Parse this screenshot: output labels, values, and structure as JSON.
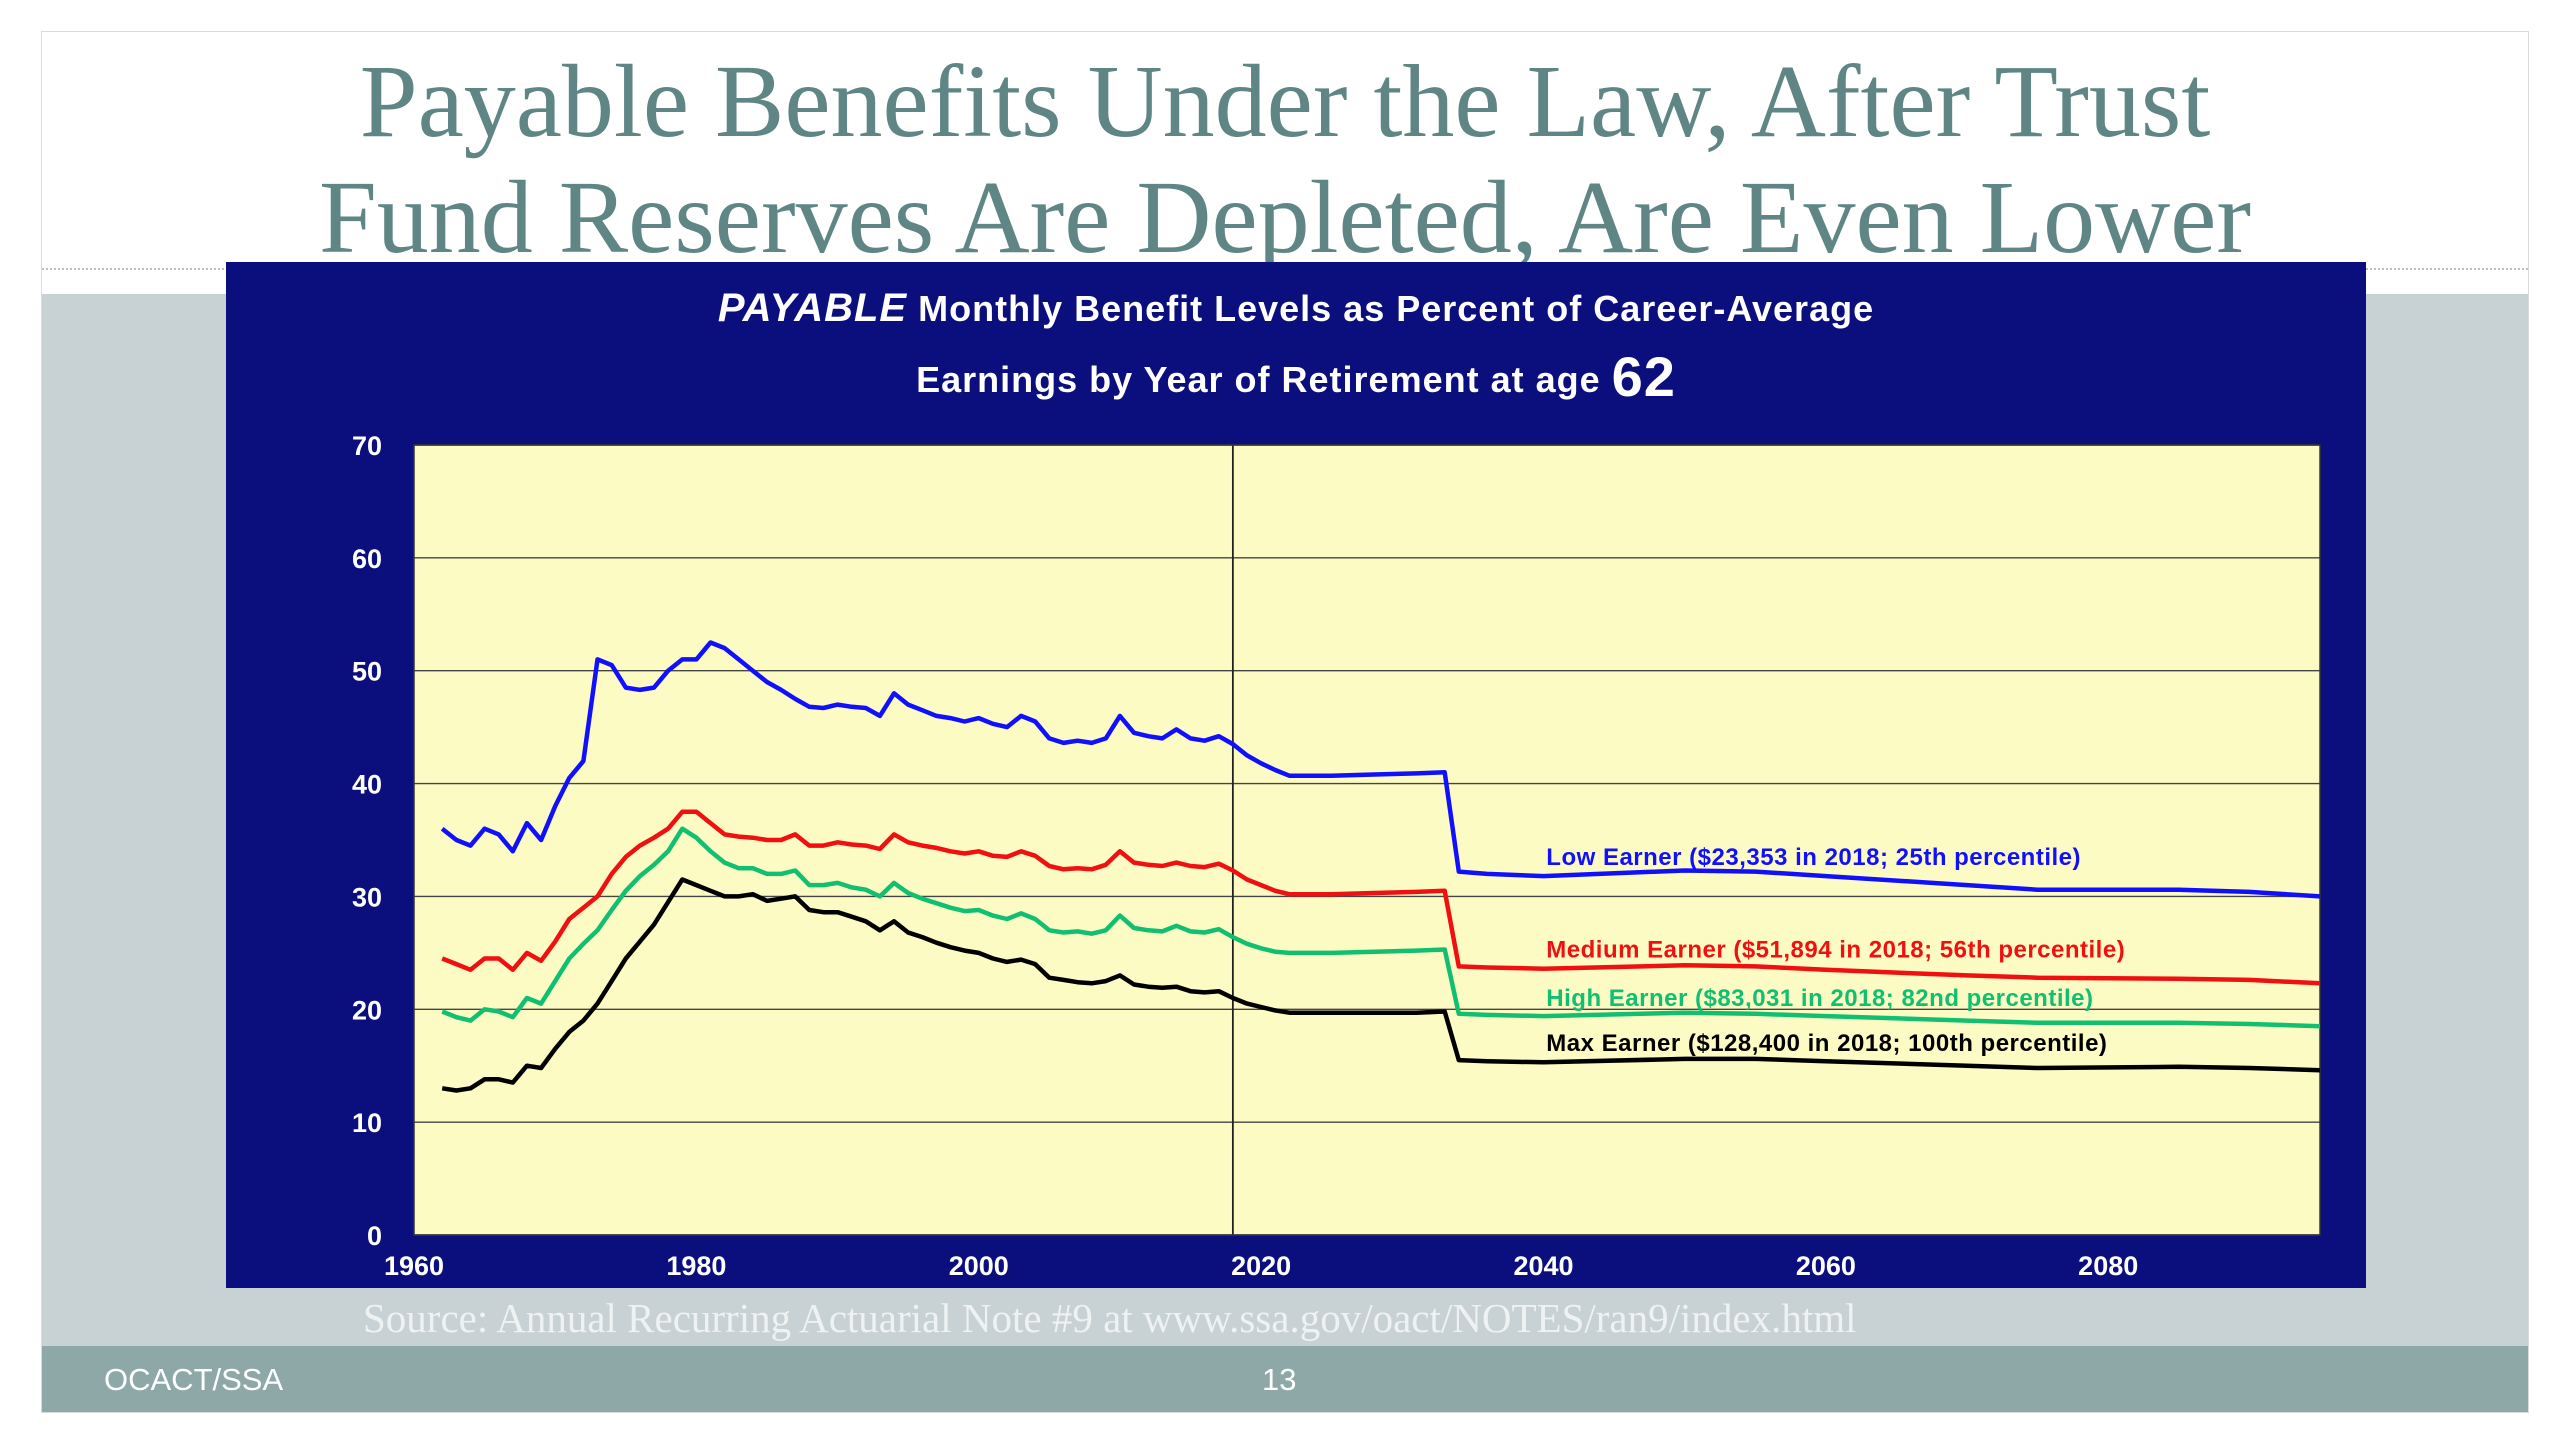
{
  "slide": {
    "title_line1": "Payable Benefits Under the Law, After Trust",
    "title_line2": "Fund Reserves Are Depleted, Are Even Lower",
    "source": "Source: Annual Recurring Actuarial Note #9 at www.ssa.gov/oact/NOTES/ran9/index.html",
    "footer_left": "OCACT/SSA",
    "page_number": "13",
    "colors": {
      "title": "#5f8585",
      "panel": "#0b0f7e",
      "plot_bg": "#fdfbc4",
      "footer": "#8ea8a8"
    }
  },
  "chart_data": {
    "type": "line",
    "title_emphasis": "PAYABLE",
    "title_rest": "Monthly Benefit Levels as Percent of Career-Average",
    "title_line2": "Earnings by Year of Retirement at age",
    "title_age": "62",
    "xlim": [
      1960,
      2095
    ],
    "ylim": [
      0,
      70
    ],
    "xticks": [
      1960,
      1980,
      2000,
      2020,
      2040,
      2060,
      2080
    ],
    "yticks": [
      0,
      10,
      20,
      30,
      40,
      50,
      60,
      70
    ],
    "grid": true,
    "reference_line_x": 2018,
    "series": [
      {
        "name": "Low Earner ($23,353 in 2018; 25th percentile)",
        "color": "#1010ff",
        "points": [
          [
            1962,
            36
          ],
          [
            1963,
            35
          ],
          [
            1964,
            34.5
          ],
          [
            1965,
            36
          ],
          [
            1966,
            35.5
          ],
          [
            1967,
            34
          ],
          [
            1968,
            36.5
          ],
          [
            1969,
            35
          ],
          [
            1970,
            38
          ],
          [
            1971,
            40.5
          ],
          [
            1972,
            42
          ],
          [
            1973,
            51
          ],
          [
            1974,
            50.5
          ],
          [
            1975,
            48.5
          ],
          [
            1976,
            48.3
          ],
          [
            1977,
            48.5
          ],
          [
            1978,
            50
          ],
          [
            1979,
            51
          ],
          [
            1980,
            51
          ],
          [
            1981,
            52.5
          ],
          [
            1982,
            52
          ],
          [
            1983,
            51
          ],
          [
            1984,
            50
          ],
          [
            1985,
            49
          ],
          [
            1986,
            48.3
          ],
          [
            1987,
            47.5
          ],
          [
            1988,
            46.8
          ],
          [
            1989,
            46.7
          ],
          [
            1990,
            47
          ],
          [
            1991,
            46.8
          ],
          [
            1992,
            46.7
          ],
          [
            1993,
            46
          ],
          [
            1994,
            48
          ],
          [
            1995,
            47
          ],
          [
            1996,
            46.5
          ],
          [
            1997,
            46
          ],
          [
            1998,
            45.8
          ],
          [
            1999,
            45.5
          ],
          [
            2000,
            45.8
          ],
          [
            2001,
            45.3
          ],
          [
            2002,
            45
          ],
          [
            2003,
            46
          ],
          [
            2004,
            45.5
          ],
          [
            2005,
            44
          ],
          [
            2006,
            43.6
          ],
          [
            2007,
            43.8
          ],
          [
            2008,
            43.6
          ],
          [
            2009,
            44
          ],
          [
            2010,
            46
          ],
          [
            2011,
            44.5
          ],
          [
            2012,
            44.2
          ],
          [
            2013,
            44
          ],
          [
            2014,
            44.8
          ],
          [
            2015,
            44
          ],
          [
            2016,
            43.8
          ],
          [
            2017,
            44.2
          ],
          [
            2018,
            43.5
          ],
          [
            2019,
            42.5
          ],
          [
            2020,
            41.8
          ],
          [
            2021,
            41.2
          ],
          [
            2022,
            40.7
          ],
          [
            2025,
            40.7
          ],
          [
            2028,
            40.8
          ],
          [
            2031,
            40.9
          ],
          [
            2033,
            41
          ],
          [
            2034,
            32.2
          ],
          [
            2036,
            32
          ],
          [
            2040,
            31.8
          ],
          [
            2050,
            32.3
          ],
          [
            2055,
            32.2
          ],
          [
            2060,
            31.8
          ],
          [
            2070,
            31
          ],
          [
            2075,
            30.6
          ],
          [
            2085,
            30.6
          ],
          [
            2090,
            30.4
          ],
          [
            2095,
            30
          ]
        ]
      },
      {
        "name": "Medium Earner ($51,894 in 2018; 56th percentile)",
        "color": "#f01010",
        "points": [
          [
            1962,
            24.5
          ],
          [
            1963,
            24
          ],
          [
            1964,
            23.5
          ],
          [
            1965,
            24.5
          ],
          [
            1966,
            24.5
          ],
          [
            1967,
            23.5
          ],
          [
            1968,
            25
          ],
          [
            1969,
            24.3
          ],
          [
            1970,
            26
          ],
          [
            1971,
            28
          ],
          [
            1972,
            29
          ],
          [
            1973,
            30
          ],
          [
            1974,
            32
          ],
          [
            1975,
            33.5
          ],
          [
            1976,
            34.5
          ],
          [
            1977,
            35.2
          ],
          [
            1978,
            36
          ],
          [
            1979,
            37.5
          ],
          [
            1980,
            37.5
          ],
          [
            1981,
            36.5
          ],
          [
            1982,
            35.5
          ],
          [
            1983,
            35.3
          ],
          [
            1984,
            35.2
          ],
          [
            1985,
            35
          ],
          [
            1986,
            35
          ],
          [
            1987,
            35.5
          ],
          [
            1988,
            34.5
          ],
          [
            1989,
            34.5
          ],
          [
            1990,
            34.8
          ],
          [
            1991,
            34.6
          ],
          [
            1992,
            34.5
          ],
          [
            1993,
            34.2
          ],
          [
            1994,
            35.5
          ],
          [
            1995,
            34.8
          ],
          [
            1996,
            34.5
          ],
          [
            1997,
            34.3
          ],
          [
            1998,
            34
          ],
          [
            1999,
            33.8
          ],
          [
            2000,
            34
          ],
          [
            2001,
            33.6
          ],
          [
            2002,
            33.5
          ],
          [
            2003,
            34
          ],
          [
            2004,
            33.6
          ],
          [
            2005,
            32.7
          ],
          [
            2006,
            32.4
          ],
          [
            2007,
            32.5
          ],
          [
            2008,
            32.4
          ],
          [
            2009,
            32.8
          ],
          [
            2010,
            34
          ],
          [
            2011,
            33
          ],
          [
            2012,
            32.8
          ],
          [
            2013,
            32.7
          ],
          [
            2014,
            33
          ],
          [
            2015,
            32.7
          ],
          [
            2016,
            32.6
          ],
          [
            2017,
            32.9
          ],
          [
            2018,
            32.3
          ],
          [
            2019,
            31.5
          ],
          [
            2020,
            31
          ],
          [
            2021,
            30.5
          ],
          [
            2022,
            30.2
          ],
          [
            2025,
            30.2
          ],
          [
            2028,
            30.3
          ],
          [
            2031,
            30.4
          ],
          [
            2033,
            30.5
          ],
          [
            2034,
            23.8
          ],
          [
            2036,
            23.7
          ],
          [
            2040,
            23.6
          ],
          [
            2050,
            23.9
          ],
          [
            2055,
            23.8
          ],
          [
            2060,
            23.5
          ],
          [
            2070,
            23
          ],
          [
            2075,
            22.8
          ],
          [
            2085,
            22.7
          ],
          [
            2090,
            22.6
          ],
          [
            2095,
            22.3
          ]
        ]
      },
      {
        "name": "High Earner ($83,031 in 2018; 82nd percentile)",
        "color": "#10c070",
        "points": [
          [
            1962,
            19.8
          ],
          [
            1963,
            19.3
          ],
          [
            1964,
            19
          ],
          [
            1965,
            20
          ],
          [
            1966,
            19.8
          ],
          [
            1967,
            19.3
          ],
          [
            1968,
            21
          ],
          [
            1969,
            20.5
          ],
          [
            1970,
            22.5
          ],
          [
            1971,
            24.5
          ],
          [
            1972,
            25.8
          ],
          [
            1973,
            27
          ],
          [
            1974,
            28.8
          ],
          [
            1975,
            30.5
          ],
          [
            1976,
            31.8
          ],
          [
            1977,
            32.8
          ],
          [
            1978,
            34
          ],
          [
            1979,
            36
          ],
          [
            1980,
            35.2
          ],
          [
            1981,
            34
          ],
          [
            1982,
            33
          ],
          [
            1983,
            32.5
          ],
          [
            1984,
            32.5
          ],
          [
            1985,
            32
          ],
          [
            1986,
            32
          ],
          [
            1987,
            32.3
          ],
          [
            1988,
            31
          ],
          [
            1989,
            31
          ],
          [
            1990,
            31.2
          ],
          [
            1991,
            30.8
          ],
          [
            1992,
            30.6
          ],
          [
            1993,
            30
          ],
          [
            1994,
            31.2
          ],
          [
            1995,
            30.3
          ],
          [
            1996,
            29.8
          ],
          [
            1997,
            29.4
          ],
          [
            1998,
            29
          ],
          [
            1999,
            28.7
          ],
          [
            2000,
            28.8
          ],
          [
            2001,
            28.3
          ],
          [
            2002,
            28
          ],
          [
            2003,
            28.5
          ],
          [
            2004,
            28
          ],
          [
            2005,
            27
          ],
          [
            2006,
            26.8
          ],
          [
            2007,
            26.9
          ],
          [
            2008,
            26.7
          ],
          [
            2009,
            27
          ],
          [
            2010,
            28.3
          ],
          [
            2011,
            27.2
          ],
          [
            2012,
            27
          ],
          [
            2013,
            26.9
          ],
          [
            2014,
            27.4
          ],
          [
            2015,
            26.9
          ],
          [
            2016,
            26.8
          ],
          [
            2017,
            27.1
          ],
          [
            2018,
            26.4
          ],
          [
            2019,
            25.8
          ],
          [
            2020,
            25.4
          ],
          [
            2021,
            25.1
          ],
          [
            2022,
            25
          ],
          [
            2025,
            25
          ],
          [
            2028,
            25.1
          ],
          [
            2031,
            25.2
          ],
          [
            2033,
            25.3
          ],
          [
            2034,
            19.6
          ],
          [
            2036,
            19.5
          ],
          [
            2040,
            19.4
          ],
          [
            2050,
            19.7
          ],
          [
            2055,
            19.6
          ],
          [
            2060,
            19.4
          ],
          [
            2070,
            19
          ],
          [
            2075,
            18.8
          ],
          [
            2085,
            18.8
          ],
          [
            2090,
            18.7
          ],
          [
            2095,
            18.5
          ]
        ]
      },
      {
        "name": "Max Earner ($128,400 in 2018; 100th percentile)",
        "color": "#000000",
        "points": [
          [
            1962,
            13
          ],
          [
            1963,
            12.8
          ],
          [
            1964,
            13
          ],
          [
            1965,
            13.8
          ],
          [
            1966,
            13.8
          ],
          [
            1967,
            13.5
          ],
          [
            1968,
            15
          ],
          [
            1969,
            14.8
          ],
          [
            1970,
            16.5
          ],
          [
            1971,
            18
          ],
          [
            1972,
            19
          ],
          [
            1973,
            20.5
          ],
          [
            1974,
            22.5
          ],
          [
            1975,
            24.5
          ],
          [
            1976,
            26
          ],
          [
            1977,
            27.5
          ],
          [
            1978,
            29.5
          ],
          [
            1979,
            31.5
          ],
          [
            1980,
            31
          ],
          [
            1981,
            30.5
          ],
          [
            1982,
            30
          ],
          [
            1983,
            30
          ],
          [
            1984,
            30.2
          ],
          [
            1985,
            29.6
          ],
          [
            1986,
            29.8
          ],
          [
            1987,
            30
          ],
          [
            1988,
            28.8
          ],
          [
            1989,
            28.6
          ],
          [
            1990,
            28.6
          ],
          [
            1991,
            28.2
          ],
          [
            1992,
            27.8
          ],
          [
            1993,
            27
          ],
          [
            1994,
            27.8
          ],
          [
            1995,
            26.8
          ],
          [
            1996,
            26.4
          ],
          [
            1997,
            25.9
          ],
          [
            1998,
            25.5
          ],
          [
            1999,
            25.2
          ],
          [
            2000,
            25
          ],
          [
            2001,
            24.5
          ],
          [
            2002,
            24.2
          ],
          [
            2003,
            24.4
          ],
          [
            2004,
            24
          ],
          [
            2005,
            22.8
          ],
          [
            2006,
            22.6
          ],
          [
            2007,
            22.4
          ],
          [
            2008,
            22.3
          ],
          [
            2009,
            22.5
          ],
          [
            2010,
            23
          ],
          [
            2011,
            22.2
          ],
          [
            2012,
            22
          ],
          [
            2013,
            21.9
          ],
          [
            2014,
            22
          ],
          [
            2015,
            21.6
          ],
          [
            2016,
            21.5
          ],
          [
            2017,
            21.6
          ],
          [
            2018,
            21
          ],
          [
            2019,
            20.5
          ],
          [
            2020,
            20.2
          ],
          [
            2021,
            19.9
          ],
          [
            2022,
            19.7
          ],
          [
            2025,
            19.7
          ],
          [
            2028,
            19.7
          ],
          [
            2031,
            19.7
          ],
          [
            2033,
            19.8
          ],
          [
            2034,
            15.5
          ],
          [
            2036,
            15.4
          ],
          [
            2040,
            15.3
          ],
          [
            2050,
            15.6
          ],
          [
            2055,
            15.6
          ],
          [
            2060,
            15.4
          ],
          [
            2070,
            15
          ],
          [
            2075,
            14.8
          ],
          [
            2085,
            14.9
          ],
          [
            2090,
            14.8
          ],
          [
            2095,
            14.6
          ]
        ]
      }
    ]
  }
}
